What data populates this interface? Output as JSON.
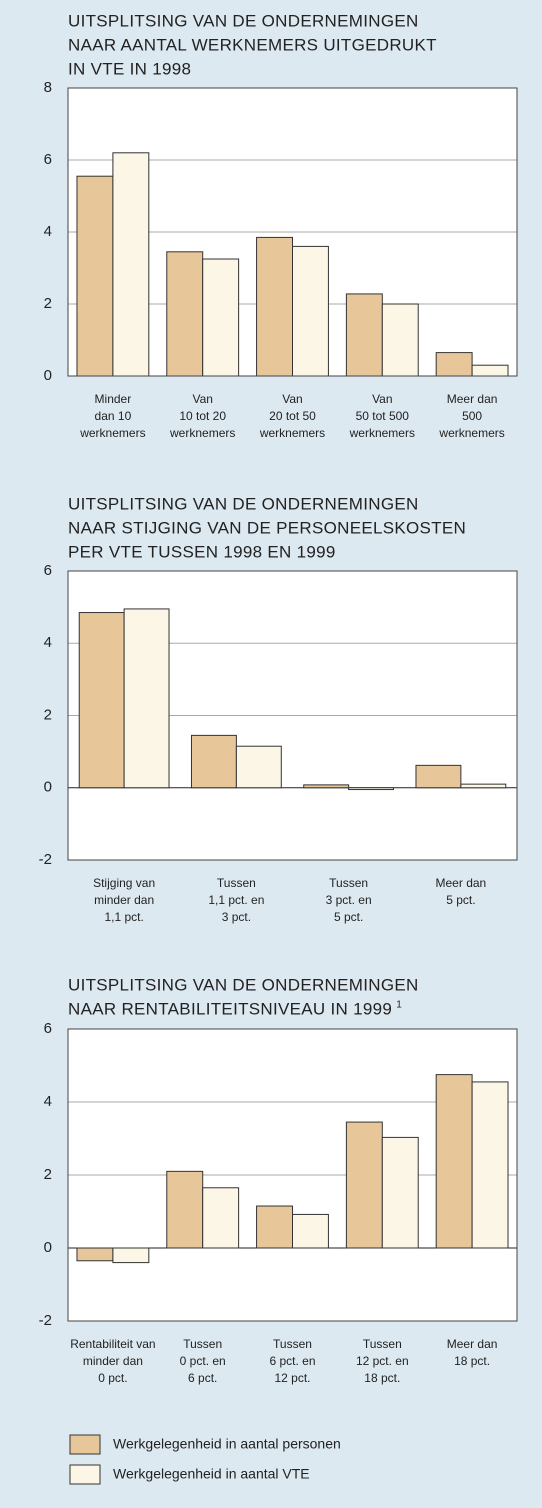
{
  "chart_data": [
    {
      "type": "bar",
      "title": [
        "UITSPLITSING VAN DE ONDERNEMINGEN",
        "NAAR AANTAL WERKNEMERS UITGEDRUKT",
        "IN VTE IN 1998"
      ],
      "categories": [
        [
          "Minder",
          "dan 10",
          "werknemers"
        ],
        [
          "Van",
          "10 tot 20",
          "werknemers"
        ],
        [
          "Van",
          "20 tot 50",
          "werknemers"
        ],
        [
          "Van",
          "50 tot 500",
          "werknemers"
        ],
        [
          "Meer dan",
          "500",
          "werknemers"
        ]
      ],
      "series": [
        {
          "values": [
            5.55,
            3.45,
            3.85,
            2.28,
            0.65
          ]
        },
        {
          "values": [
            6.2,
            3.25,
            3.6,
            2.0,
            0.3
          ]
        }
      ],
      "ylim": [
        0,
        8
      ],
      "yticks": [
        0,
        2,
        4,
        6,
        8
      ],
      "grid": true
    },
    {
      "type": "bar",
      "title": [
        "UITSPLITSING VAN DE ONDERNEMINGEN",
        "NAAR STIJGING VAN DE PERSONEELSKOSTEN",
        "PER VTE TUSSEN 1998 EN 1999"
      ],
      "categories": [
        [
          "Stijging van",
          "minder dan",
          "1,1 pct."
        ],
        [
          "Tussen",
          "1,1 pct. en",
          "3 pct."
        ],
        [
          "Tussen",
          "3 pct. en",
          "5 pct."
        ],
        [
          "Meer dan",
          "5 pct."
        ]
      ],
      "series": [
        {
          "values": [
            4.85,
            1.45,
            0.08,
            0.62
          ]
        },
        {
          "values": [
            4.95,
            1.15,
            -0.05,
            0.1
          ]
        }
      ],
      "ylim": [
        -2,
        6
      ],
      "yticks": [
        -2,
        0,
        2,
        4,
        6
      ],
      "grid": true
    },
    {
      "type": "bar",
      "title": [
        "UITSPLITSING VAN DE ONDERNEMINGEN",
        "NAAR RENTABILITEITSNIVEAU IN 1999"
      ],
      "footnote_mark": "1",
      "categories": [
        [
          "Rentabiliteit van",
          "minder dan",
          "0 pct."
        ],
        [
          "Tussen",
          "0 pct. en",
          "6 pct."
        ],
        [
          "Tussen",
          "6 pct. en",
          "12 pct."
        ],
        [
          "Tussen",
          "12 pct. en",
          "18 pct."
        ],
        [
          "Meer dan",
          "18 pct."
        ]
      ],
      "series": [
        {
          "values": [
            -0.35,
            2.1,
            1.15,
            3.45,
            4.75
          ]
        },
        {
          "values": [
            -0.4,
            1.65,
            0.92,
            3.03,
            4.55
          ]
        }
      ],
      "ylim": [
        -2,
        6
      ],
      "yticks": [
        -2,
        0,
        2,
        4,
        6
      ],
      "grid": true
    }
  ],
  "legend": {
    "items": [
      {
        "name": "Werkgelegenheid in aantal personen",
        "color": "#e7c79a"
      },
      {
        "name": "Werkgelegenheid in aantal  VTE",
        "color": "#fbf6e6"
      }
    ]
  }
}
